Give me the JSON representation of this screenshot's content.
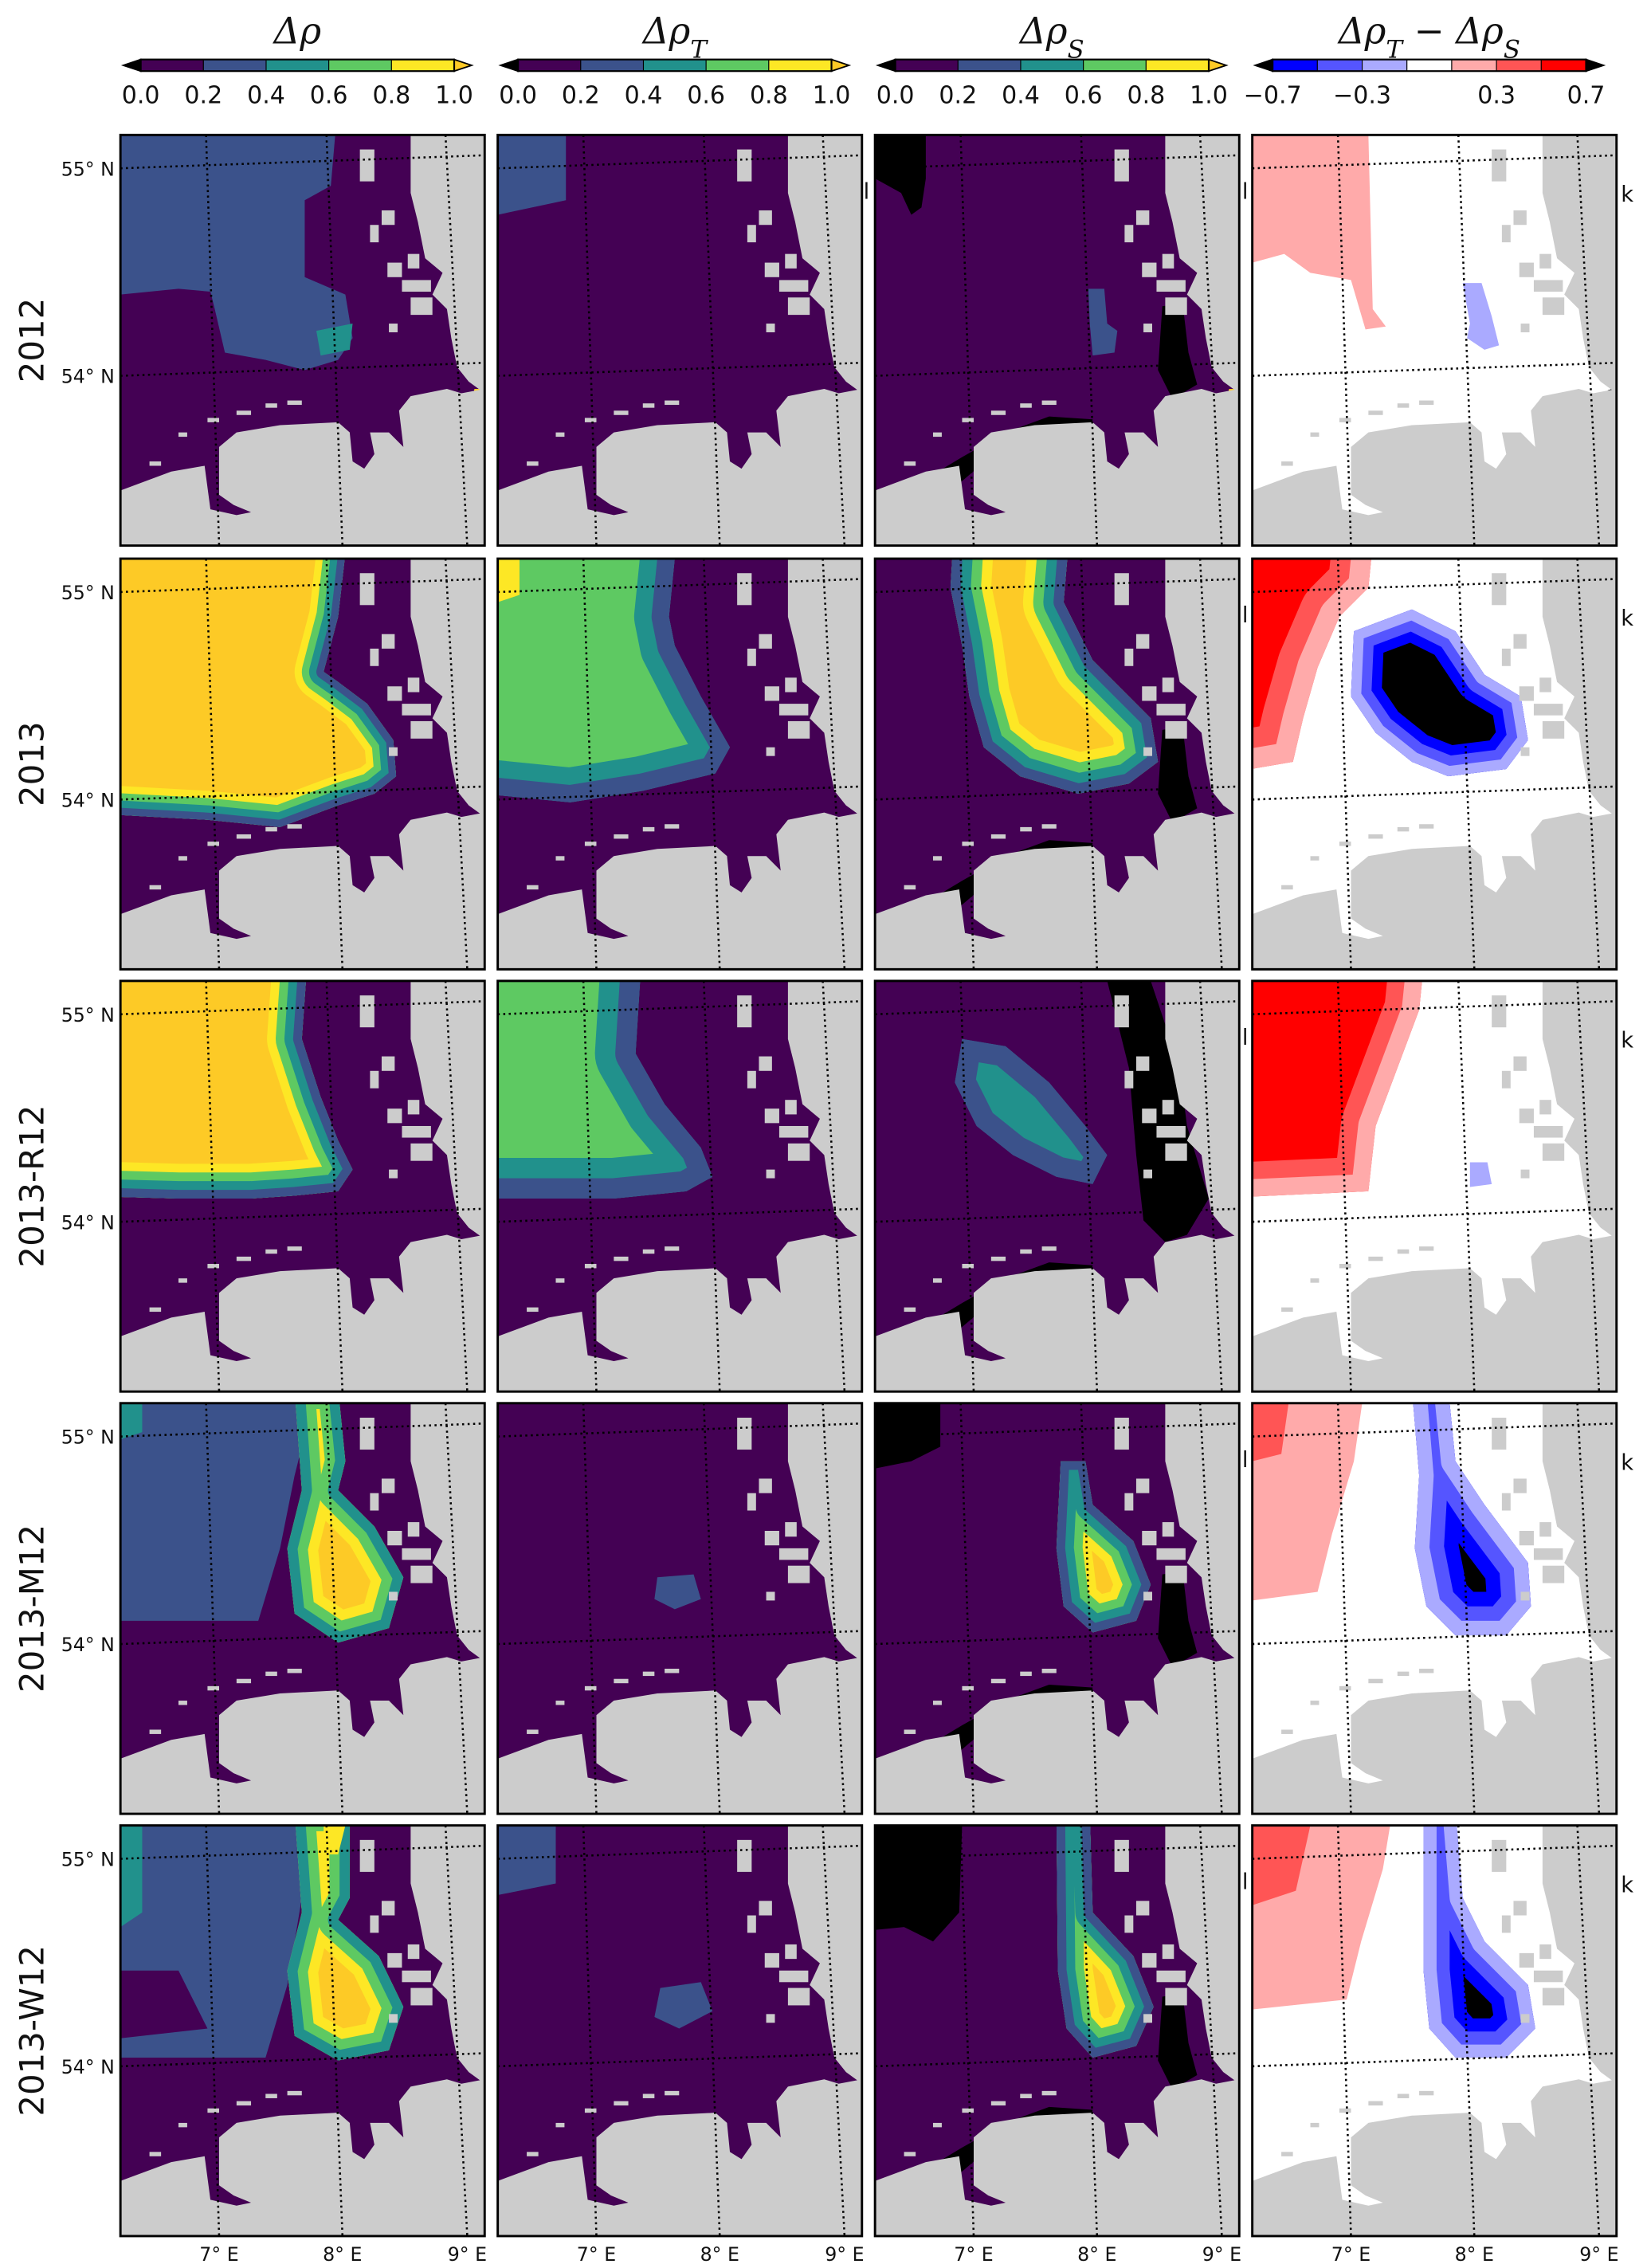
{
  "figure": {
    "column_titles": [
      {
        "base": "Δρ",
        "sub": ""
      },
      {
        "base": "Δρ",
        "sub": "T"
      },
      {
        "base": "Δρ",
        "sub": "S"
      },
      {
        "base": "Δρ",
        "sub": "T",
        "base2": " − Δρ",
        "sub2": "S"
      }
    ],
    "row_labels": [
      "2012",
      "2013",
      "2013-R12",
      "2013-M12",
      "2013-W12"
    ],
    "lat_labels": [
      "55° N",
      "54° N"
    ],
    "lon_labels": [
      "7° E",
      "8° E",
      "9° E"
    ],
    "stray_glyphs": [
      "l",
      "k"
    ]
  },
  "colors": {
    "sequential": [
      "#440154",
      "#3b528b",
      "#21918c",
      "#5ec962",
      "#fde725"
    ],
    "sequential_over": "#fdca26",
    "sequential_under": "#000000",
    "diverging": {
      "-3": "#0000ff",
      "-2": "#5555ff",
      "-1": "#aaaaff",
      "0": "#ffffff",
      "1": "#ffaaaa",
      "2": "#ff5555",
      "3": "#ff0000"
    },
    "diverging_under": "#000000",
    "diverging_over": "#000000",
    "land": "#cccccc",
    "grid": "#000000"
  },
  "chart_data": {
    "type": "heatmap",
    "description_rows": [
      "2012",
      "2013",
      "2013-R12",
      "2013-M12",
      "2013-W12"
    ],
    "description_columns": [
      "Δρ",
      "Δρ_T",
      "Δρ_S",
      "Δρ_T − Δρ_S"
    ],
    "colorbars": [
      {
        "range": [
          0.0,
          1.0
        ],
        "bounds": [
          0.0,
          0.2,
          0.4,
          0.6,
          0.8,
          1.0
        ],
        "ticks": [
          0.0,
          0.2,
          0.4,
          0.6,
          0.8,
          1.0
        ],
        "tick_labels": [
          "0.0",
          "0.2",
          "0.4",
          "0.6",
          "0.8",
          "1.0"
        ],
        "extend": "both"
      },
      {
        "range": [
          0.0,
          1.0
        ],
        "bounds": [
          0.0,
          0.2,
          0.4,
          0.6,
          0.8,
          1.0
        ],
        "ticks": [
          0.0,
          0.2,
          0.4,
          0.6,
          0.8,
          1.0
        ],
        "tick_labels": [
          "0.0",
          "0.2",
          "0.4",
          "0.6",
          "0.8",
          "1.0"
        ],
        "extend": "both"
      },
      {
        "range": [
          0.0,
          1.0
        ],
        "bounds": [
          0.0,
          0.2,
          0.4,
          0.6,
          0.8,
          1.0
        ],
        "ticks": [
          0.0,
          0.2,
          0.4,
          0.6,
          0.8,
          1.0
        ],
        "tick_labels": [
          "0.0",
          "0.2",
          "0.4",
          "0.6",
          "0.8",
          "1.0"
        ],
        "extend": "both"
      },
      {
        "range": [
          -0.7,
          0.7
        ],
        "bounds": [
          -0.7,
          -0.5,
          -0.3,
          -0.1,
          0.1,
          0.3,
          0.5,
          0.7
        ],
        "ticks": [
          -0.7,
          -0.3,
          0.3,
          0.7
        ],
        "tick_labels": [
          "−0.7",
          "−0.3",
          "0.3",
          "0.7"
        ],
        "extend": "both"
      }
    ],
    "xticks": [
      "7° E",
      "8° E",
      "9° E"
    ],
    "yticks": [
      "55° N",
      "54° N"
    ],
    "xlim_deg_E": [
      6.2,
      9.2
    ],
    "ylim_deg_N": [
      53.4,
      55.1
    ],
    "grid": true,
    "panels": [
      {
        "row": "2012",
        "col": "Δρ",
        "background": "0.0–0.2",
        "max_class": "0.4–0.6"
      },
      {
        "row": "2012",
        "col": "Δρ_T",
        "background": "0.0–0.2",
        "max_class": "0.2–0.4"
      },
      {
        "row": "2012",
        "col": "Δρ_S",
        "background": "0.0–0.2",
        "max_class": "0.2–0.4"
      },
      {
        "row": "2012",
        "col": "Δρ_T − Δρ_S",
        "background": "−0.1–0.1",
        "max_class": "0.1–0.3",
        "min_class": "−0.3–−0.1"
      },
      {
        "row": "2013",
        "col": "Δρ",
        "background": "0.0–0.2",
        "max_class": ">1.0"
      },
      {
        "row": "2013",
        "col": "Δρ_T",
        "background": "0.0–0.2",
        "max_class": "0.6–0.8"
      },
      {
        "row": "2013",
        "col": "Δρ_S",
        "background": "0.0–0.2",
        "max_class": ">1.0"
      },
      {
        "row": "2013",
        "col": "Δρ_T − Δρ_S",
        "background": "−0.1–0.1",
        "max_class": "0.5–0.7",
        "min_class": "<−0.7"
      },
      {
        "row": "2013-R12",
        "col": "Δρ",
        "background": "0.0–0.2",
        "max_class": ">1.0"
      },
      {
        "row": "2013-R12",
        "col": "Δρ_T",
        "background": "0.0–0.2",
        "max_class": "0.6–0.8"
      },
      {
        "row": "2013-R12",
        "col": "Δρ_S",
        "background": "0.0–0.2",
        "max_class": "0.4–0.6"
      },
      {
        "row": "2013-R12",
        "col": "Δρ_T − Δρ_S",
        "background": "−0.1–0.1",
        "max_class": "0.5–0.7",
        "min_class": "−0.3–−0.1"
      },
      {
        "row": "2013-M12",
        "col": "Δρ",
        "background": "0.0–0.2",
        "max_class": ">1.0"
      },
      {
        "row": "2013-M12",
        "col": "Δρ_T",
        "background": "0.0–0.2",
        "max_class": "0.2–0.4"
      },
      {
        "row": "2013-M12",
        "col": "Δρ_S",
        "background": "0.0–0.2",
        "max_class": ">1.0"
      },
      {
        "row": "2013-M12",
        "col": "Δρ_T − Δρ_S",
        "background": "−0.1–0.1",
        "max_class": "0.3–0.5",
        "min_class": "<−0.7"
      },
      {
        "row": "2013-W12",
        "col": "Δρ",
        "background": "0.0–0.2",
        "max_class": ">1.0"
      },
      {
        "row": "2013-W12",
        "col": "Δρ_T",
        "background": "0.0–0.2",
        "max_class": "0.2–0.4"
      },
      {
        "row": "2013-W12",
        "col": "Δρ_S",
        "background": "0.0–0.2",
        "max_class": ">1.0"
      },
      {
        "row": "2013-W12",
        "col": "Δρ_T − Δρ_S",
        "background": "−0.1–0.1",
        "max_class": "0.3–0.5",
        "min_class": "<−0.7"
      }
    ]
  }
}
